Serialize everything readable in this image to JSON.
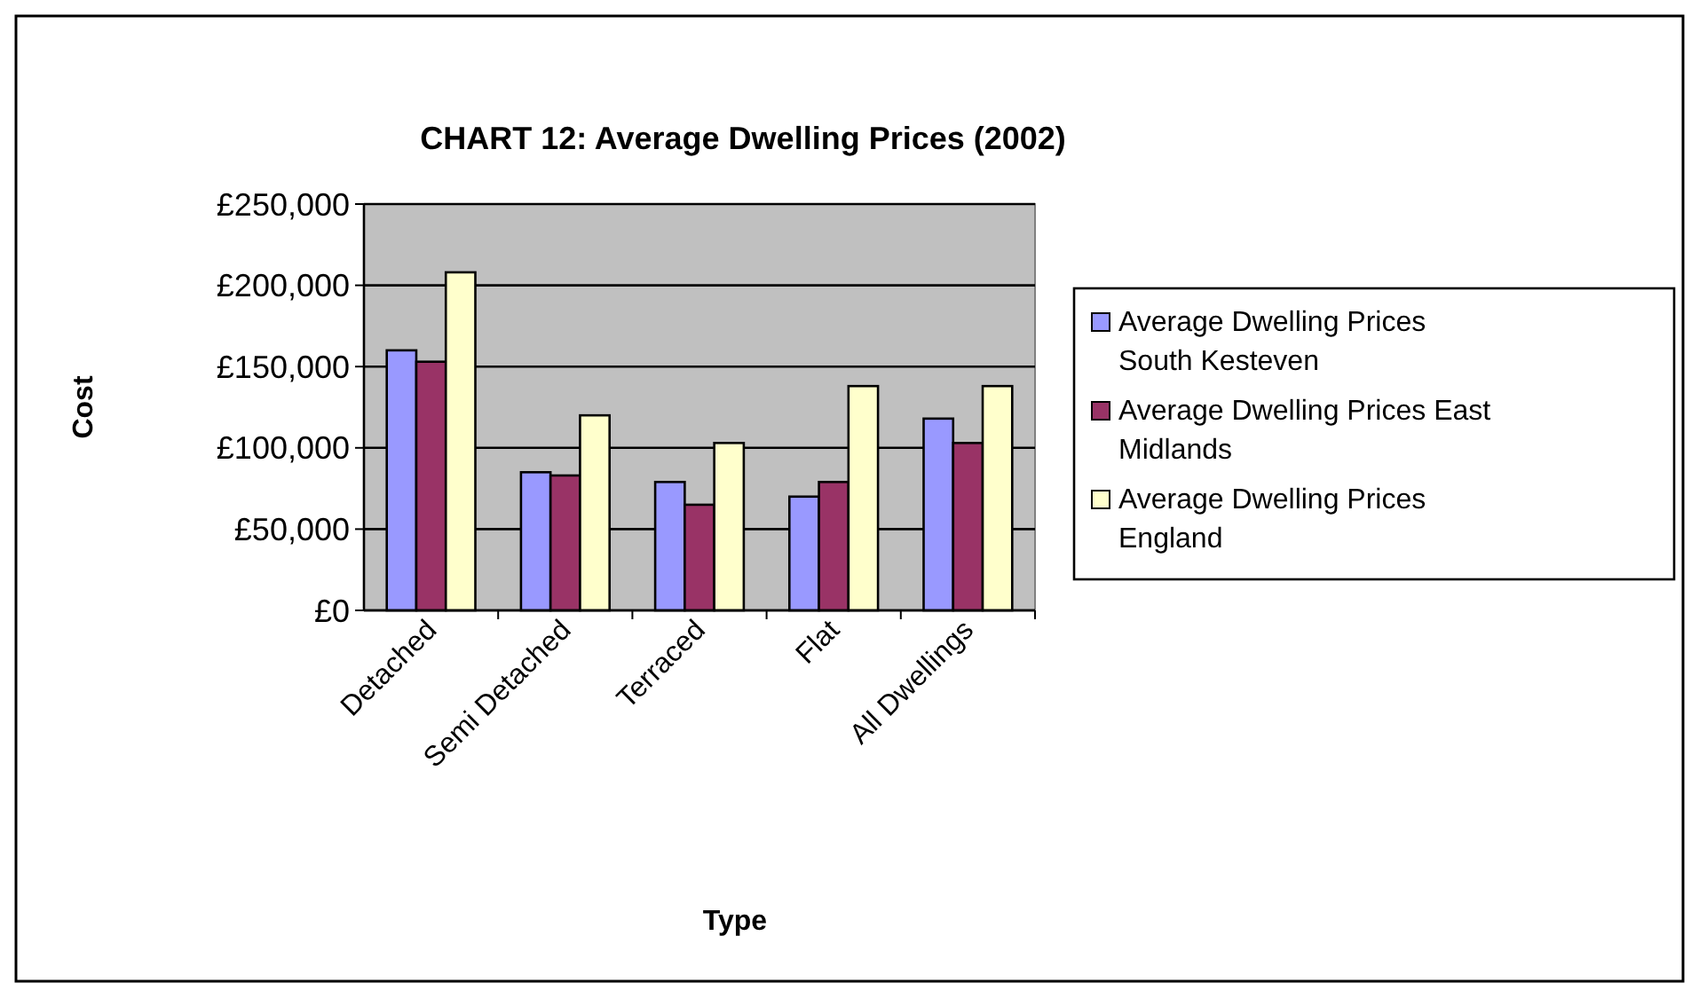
{
  "chart_data": {
    "type": "bar",
    "title": "CHART 12: Average Dwelling Prices (2002)",
    "xlabel": "Type",
    "ylabel": "Cost",
    "categories": [
      "Detached",
      "Semi Detached",
      "Terraced",
      "Flat",
      "All Dwellings"
    ],
    "series": [
      {
        "name": "Average Dwelling Prices South Kesteven",
        "color": "#9999ff",
        "values": [
          160000,
          85000,
          79000,
          70000,
          118000
        ]
      },
      {
        "name": "Average Dwelling Prices East Midlands",
        "color": "#993366",
        "values": [
          153000,
          83000,
          65000,
          79000,
          103000
        ]
      },
      {
        "name": "Average Dwelling Prices England",
        "color": "#ffffcc",
        "values": [
          208000,
          120000,
          103000,
          138000,
          138000
        ]
      }
    ],
    "ylim": [
      0,
      250000
    ],
    "yticks": [
      {
        "value": 0,
        "label": "£0"
      },
      {
        "value": 50000,
        "label": "£50,000"
      },
      {
        "value": 100000,
        "label": "£100,000"
      },
      {
        "value": 150000,
        "label": "£150,000"
      },
      {
        "value": 200000,
        "label": "£200,000"
      },
      {
        "value": 250000,
        "label": "£250,000"
      }
    ],
    "grid": "y",
    "legend": "right"
  }
}
